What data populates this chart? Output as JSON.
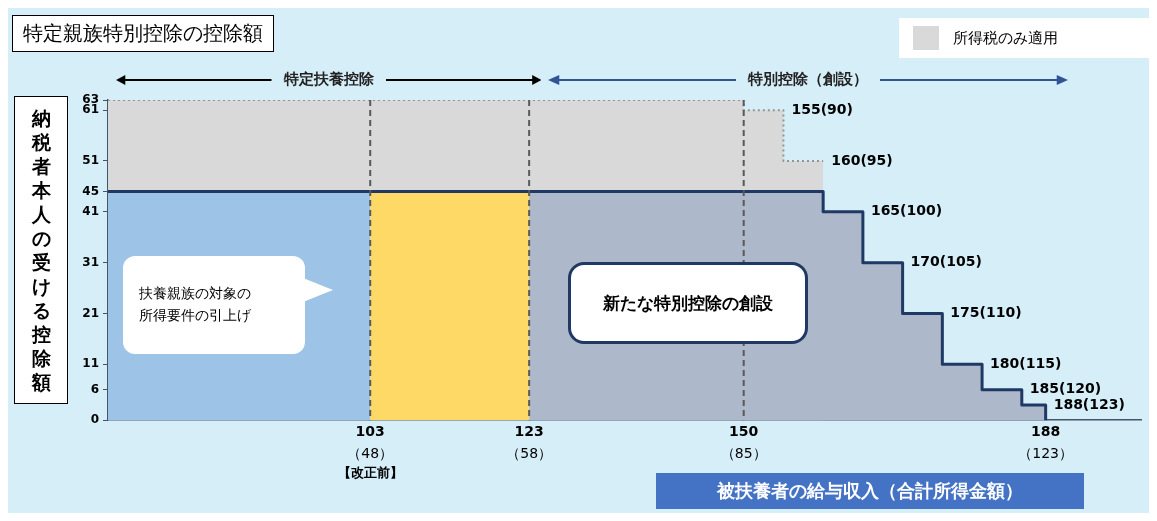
{
  "chart_data": {
    "type": "area",
    "title": "特定親族特別控除の控除額",
    "xlabel": "被扶養者の給与収入（合計所得金額）",
    "ylabel": "納税者本人の受ける控除額",
    "xlim": [
      70,
      200
    ],
    "xticks": [
      103,
      123,
      150,
      188
    ],
    "ylim": [
      0,
      63
    ],
    "yticks": [
      0,
      6,
      11,
      21,
      31,
      41,
      45,
      51,
      61,
      63
    ],
    "grid": false,
    "legend": "top right",
    "marker": "none",
    "series": [
      {
        "name": "所得税のみ適用",
        "color": "#d9d9d9",
        "line_style": "dotted",
        "x": [
          70,
          150,
          150,
          155,
          155,
          160
        ],
        "values": [
          63,
          63,
          61,
          61,
          51,
          51
        ]
      },
      {
        "color": "#9dc3e6",
        "x": [
          70,
          103
        ],
        "values": [
          45,
          45
        ]
      },
      {
        "color": "#ffd966",
        "x": [
          103,
          123
        ],
        "values": [
          45,
          45
        ]
      },
      {
        "color": "#adb9ca",
        "x": [
          123,
          160,
          160,
          165,
          165,
          170,
          170,
          175,
          175,
          180,
          180,
          185,
          185,
          188,
          188
        ],
        "values": [
          45,
          45,
          41,
          41,
          31,
          31,
          21,
          21,
          11,
          11,
          6,
          6,
          3,
          3,
          0
        ]
      },
      {
        "type": "line",
        "color": "#1f3864",
        "line_style": "solid",
        "x": [
          70,
          160,
          160,
          165,
          165,
          170,
          170,
          175,
          175,
          180,
          180,
          185,
          185,
          188,
          188
        ],
        "values": [
          45,
          45,
          41,
          41,
          31,
          31,
          21,
          21,
          11,
          11,
          6,
          6,
          3,
          3,
          0
        ]
      }
    ],
    "ref_lines": [
      {
        "axis": "x",
        "value": 103,
        "color": "#595959",
        "line_style": "dashed"
      },
      {
        "axis": "x",
        "value": 123,
        "color": "#595959",
        "line_style": "dashed"
      },
      {
        "axis": "x",
        "value": 150,
        "color": "#595959",
        "line_style": "dashed"
      }
    ],
    "annotations": [
      "特定扶養控除",
      "特別控除（創設）",
      "扶養親族の対象の所得要件の引上げ",
      "新たな特別控除の創設",
      "（48）",
      "（58）",
      "（85）",
      "（123）",
      "【改正前】",
      {
        "text": "155(90)",
        "x": 155,
        "y": 61
      },
      {
        "text": "160(95)",
        "x": 160,
        "y": 51
      },
      {
        "text": "165(100)",
        "x": 165,
        "y": 41
      },
      {
        "text": "170(105)",
        "x": 170,
        "y": 31
      },
      {
        "text": "175(110)",
        "x": 175,
        "y": 21
      },
      {
        "text": "180(115)",
        "x": 180,
        "y": 11
      },
      {
        "text": "185(120)",
        "x": 185,
        "y": 6
      },
      {
        "text": "188(123)",
        "x": 188,
        "y": 3
      }
    ]
  }
}
